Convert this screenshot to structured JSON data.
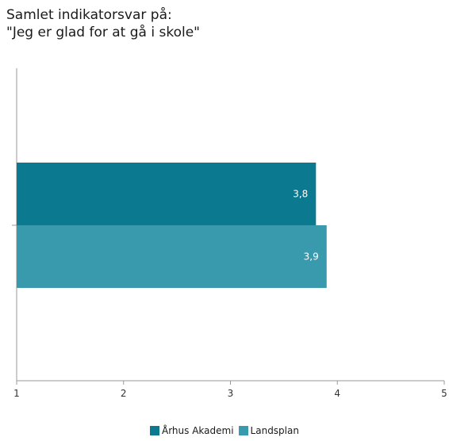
{
  "chart_data": {
    "type": "bar",
    "orientation": "horizontal",
    "title": [
      "Samlet indikatorsvar på:",
      "\"Jeg er glad for at gå i skole\""
    ],
    "xlim": [
      1,
      5
    ],
    "xticks": [
      "1",
      "2",
      "3",
      "4",
      "5"
    ],
    "series": [
      {
        "name": "Århus Akademi",
        "value": 3.8,
        "label": "3,8",
        "color": "#0b7a91"
      },
      {
        "name": "Landsplan",
        "value": 3.9,
        "label": "3,9",
        "color": "#3a9aad"
      }
    ],
    "legend_position": "bottom-center",
    "grid": false
  }
}
